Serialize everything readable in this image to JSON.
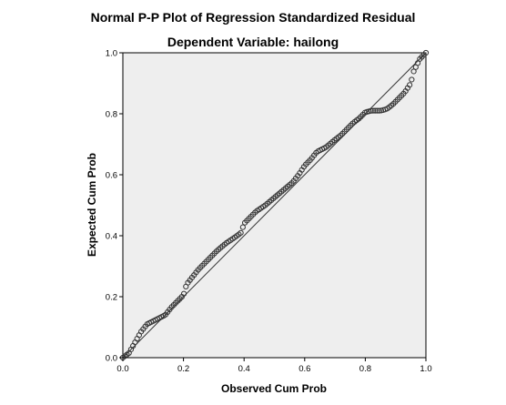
{
  "chart_data": {
    "type": "scatter",
    "title": "Normal P-P Plot of Regression Standardized Residual",
    "subtitle": "Dependent Variable: hailong",
    "xlabel": "Observed Cum Prob",
    "ylabel": "Expected Cum Prob",
    "xlim": [
      0,
      1
    ],
    "ylim": [
      0,
      1
    ],
    "x_ticks": [
      "0.0",
      "0.2",
      "0.4",
      "0.6",
      "0.8",
      "1.0"
    ],
    "y_ticks": [
      "0.0",
      "0.2",
      "0.4",
      "0.6",
      "0.8",
      "1.0"
    ],
    "reference_line": [
      [
        0,
        0
      ],
      [
        1,
        1
      ]
    ],
    "curve": [
      [
        0.0,
        0.0
      ],
      [
        0.02,
        0.015
      ],
      [
        0.04,
        0.05
      ],
      [
        0.06,
        0.085
      ],
      [
        0.08,
        0.11
      ],
      [
        0.1,
        0.12
      ],
      [
        0.12,
        0.13
      ],
      [
        0.14,
        0.14
      ],
      [
        0.16,
        0.165
      ],
      [
        0.18,
        0.185
      ],
      [
        0.2,
        0.205
      ],
      [
        0.21,
        0.24
      ],
      [
        0.23,
        0.265
      ],
      [
        0.25,
        0.29
      ],
      [
        0.28,
        0.32
      ],
      [
        0.31,
        0.35
      ],
      [
        0.34,
        0.375
      ],
      [
        0.37,
        0.395
      ],
      [
        0.39,
        0.41
      ],
      [
        0.4,
        0.44
      ],
      [
        0.42,
        0.46
      ],
      [
        0.44,
        0.48
      ],
      [
        0.47,
        0.5
      ],
      [
        0.5,
        0.525
      ],
      [
        0.53,
        0.55
      ],
      [
        0.56,
        0.575
      ],
      [
        0.58,
        0.6
      ],
      [
        0.6,
        0.63
      ],
      [
        0.62,
        0.65
      ],
      [
        0.64,
        0.675
      ],
      [
        0.67,
        0.69
      ],
      [
        0.7,
        0.715
      ],
      [
        0.72,
        0.73
      ],
      [
        0.74,
        0.75
      ],
      [
        0.76,
        0.77
      ],
      [
        0.78,
        0.785
      ],
      [
        0.8,
        0.805
      ],
      [
        0.82,
        0.81
      ],
      [
        0.85,
        0.81
      ],
      [
        0.87,
        0.815
      ],
      [
        0.89,
        0.83
      ],
      [
        0.91,
        0.85
      ],
      [
        0.93,
        0.87
      ],
      [
        0.95,
        0.9
      ],
      [
        0.96,
        0.94
      ],
      [
        0.98,
        0.98
      ],
      [
        1.0,
        1.0
      ]
    ],
    "n_points": 150,
    "point_color": "#333333",
    "plot_background": "#eeeeee",
    "grid": false,
    "legend": false
  }
}
